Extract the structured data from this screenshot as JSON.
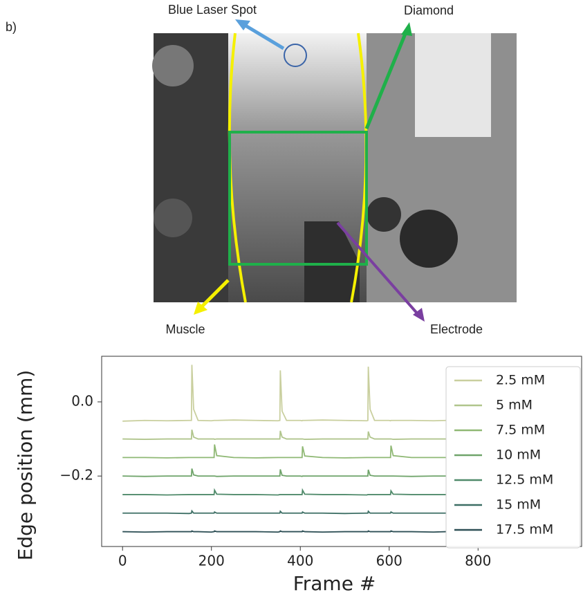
{
  "panel_label": "b)",
  "image_labels": {
    "laser": "Blue Laser Spot",
    "diamond": "Diamond",
    "muscle": "Muscle",
    "electrode": "Electrode"
  },
  "chart_data": {
    "type": "line",
    "xlabel": "Frame #",
    "ylabel": "Edge position (mm)",
    "xlim": [
      -47,
      1033
    ],
    "ylim": [
      -0.39,
      0.123
    ],
    "xticks": [
      0,
      200,
      400,
      600,
      800
    ],
    "yticks": [
      {
        "value": -0.2,
        "label": "−0.2"
      },
      {
        "value": 0,
        "label": "0.0"
      }
    ],
    "legend": "upper right",
    "x": [
      0,
      50,
      100,
      150,
      155,
      156,
      160,
      170,
      200,
      206,
      207,
      212,
      250,
      300,
      350,
      354,
      355,
      359,
      369,
      400,
      404,
      405,
      410,
      450,
      500,
      550,
      552,
      553,
      557,
      567,
      600,
      603,
      604,
      609,
      650,
      700,
      728
    ],
    "series": [
      {
        "name": "2.5 mM",
        "color": "#c9cf9e",
        "values": [
          -0.052,
          -0.05,
          -0.051,
          -0.05,
          -0.05,
          0.1,
          -0.02,
          -0.05,
          -0.051,
          -0.05,
          -0.05,
          -0.05,
          -0.049,
          -0.05,
          -0.051,
          -0.05,
          0.085,
          -0.025,
          -0.05,
          -0.05,
          -0.051,
          -0.05,
          -0.05,
          -0.049,
          -0.05,
          -0.051,
          -0.05,
          0.095,
          -0.02,
          -0.05,
          -0.05,
          -0.051,
          -0.05,
          -0.05,
          -0.05,
          -0.051,
          -0.05
        ]
      },
      {
        "name": "5 mM",
        "color": "#b0c58c",
        "values": [
          -0.1,
          -0.101,
          -0.1,
          -0.1,
          -0.1,
          -0.075,
          -0.095,
          -0.1,
          -0.1,
          -0.1,
          -0.101,
          -0.1,
          -0.1,
          -0.1,
          -0.1,
          -0.1,
          -0.078,
          -0.095,
          -0.1,
          -0.1,
          -0.1,
          -0.1,
          -0.101,
          -0.1,
          -0.1,
          -0.1,
          -0.1,
          -0.08,
          -0.095,
          -0.1,
          -0.1,
          -0.1,
          -0.1,
          -0.101,
          -0.1,
          -0.1,
          -0.1
        ]
      },
      {
        "name": "7.5 mM",
        "color": "#8fb874",
        "values": [
          -0.15,
          -0.15,
          -0.151,
          -0.15,
          -0.15,
          -0.15,
          -0.15,
          -0.15,
          -0.15,
          -0.15,
          -0.115,
          -0.145,
          -0.15,
          -0.151,
          -0.15,
          -0.15,
          -0.15,
          -0.15,
          -0.15,
          -0.15,
          -0.15,
          -0.12,
          -0.146,
          -0.15,
          -0.151,
          -0.15,
          -0.15,
          -0.15,
          -0.15,
          -0.15,
          -0.15,
          -0.15,
          -0.118,
          -0.145,
          -0.15,
          -0.15,
          -0.15
        ]
      },
      {
        "name": "10 mM",
        "color": "#6fa46a",
        "values": [
          -0.2,
          -0.201,
          -0.2,
          -0.2,
          -0.2,
          -0.18,
          -0.197,
          -0.2,
          -0.2,
          -0.2,
          -0.2,
          -0.201,
          -0.2,
          -0.2,
          -0.2,
          -0.2,
          -0.182,
          -0.198,
          -0.2,
          -0.2,
          -0.201,
          -0.2,
          -0.2,
          -0.2,
          -0.2,
          -0.2,
          -0.2,
          -0.183,
          -0.198,
          -0.2,
          -0.2,
          -0.2,
          -0.2,
          -0.2,
          -0.201,
          -0.2,
          -0.2
        ]
      },
      {
        "name": "12.5 mM",
        "color": "#4f8a6a",
        "values": [
          -0.25,
          -0.25,
          -0.251,
          -0.25,
          -0.25,
          -0.25,
          -0.25,
          -0.25,
          -0.25,
          -0.25,
          -0.238,
          -0.249,
          -0.25,
          -0.25,
          -0.251,
          -0.25,
          -0.25,
          -0.25,
          -0.25,
          -0.25,
          -0.25,
          -0.238,
          -0.249,
          -0.25,
          -0.25,
          -0.251,
          -0.25,
          -0.25,
          -0.25,
          -0.25,
          -0.25,
          -0.25,
          -0.24,
          -0.249,
          -0.25,
          -0.25,
          -0.25
        ]
      },
      {
        "name": "15 mM",
        "color": "#3c6e64",
        "values": [
          -0.3,
          -0.3,
          -0.3,
          -0.301,
          -0.3,
          -0.294,
          -0.3,
          -0.3,
          -0.3,
          -0.3,
          -0.297,
          -0.3,
          -0.3,
          -0.3,
          -0.3,
          -0.3,
          -0.295,
          -0.3,
          -0.3,
          -0.3,
          -0.3,
          -0.297,
          -0.3,
          -0.3,
          -0.301,
          -0.3,
          -0.3,
          -0.295,
          -0.3,
          -0.3,
          -0.3,
          -0.3,
          -0.297,
          -0.3,
          -0.3,
          -0.3,
          -0.3
        ]
      },
      {
        "name": "17.5 mM",
        "color": "#2d4f55",
        "values": [
          -0.35,
          -0.351,
          -0.35,
          -0.35,
          -0.35,
          -0.348,
          -0.35,
          -0.35,
          -0.351,
          -0.35,
          -0.348,
          -0.35,
          -0.35,
          -0.35,
          -0.351,
          -0.35,
          -0.348,
          -0.35,
          -0.35,
          -0.35,
          -0.35,
          -0.348,
          -0.35,
          -0.351,
          -0.35,
          -0.35,
          -0.35,
          -0.348,
          -0.35,
          -0.35,
          -0.35,
          -0.35,
          -0.348,
          -0.35,
          -0.35,
          -0.351,
          -0.35
        ]
      }
    ]
  }
}
